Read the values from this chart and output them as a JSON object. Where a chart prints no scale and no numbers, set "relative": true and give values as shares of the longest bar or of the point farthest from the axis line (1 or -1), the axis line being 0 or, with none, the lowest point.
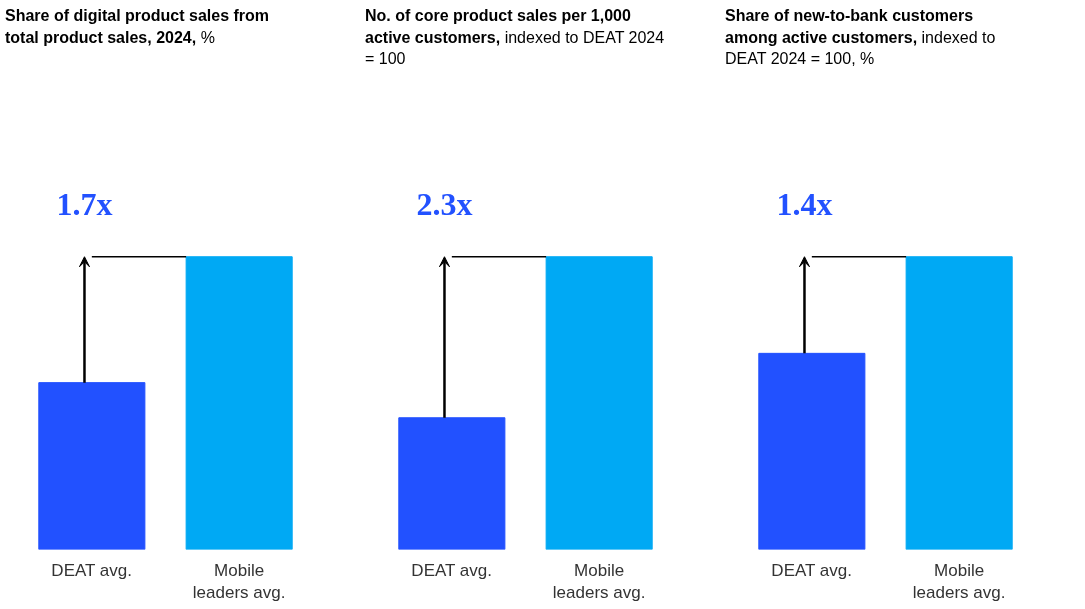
{
  "chart_data": [
    {
      "type": "bar",
      "title": "Share of digital product sales from total product sales, 2024,",
      "subtitle": "%",
      "relative": true,
      "categories": [
        "DEAT avg.",
        "Mobile leaders avg."
      ],
      "values": [
        0.57,
        1
      ],
      "colors": [
        "#2251ff",
        "#00a9f4"
      ],
      "annotations": [
        "1.7x"
      ]
    },
    {
      "type": "bar",
      "title": "No. of core product sales per 1,000 active customers,",
      "subtitle": "indexed to DEAT 2024 = 100",
      "relative": true,
      "categories": [
        "DEAT avg.",
        "Mobile leaders avg."
      ],
      "values": [
        0.45,
        1
      ],
      "colors": [
        "#2251ff",
        "#00a9f4"
      ],
      "annotations": [
        "2.3x"
      ]
    },
    {
      "type": "bar",
      "title": "Share of new-to-bank customers among active customers,",
      "subtitle": "indexed to DEAT 2024 = 100, %",
      "relative": true,
      "categories": [
        "DEAT avg.",
        "Mobile leaders avg."
      ],
      "values": [
        0.67,
        1
      ],
      "colors": [
        "#2251ff",
        "#00a9f4"
      ],
      "annotations": [
        "1.4x"
      ]
    }
  ]
}
